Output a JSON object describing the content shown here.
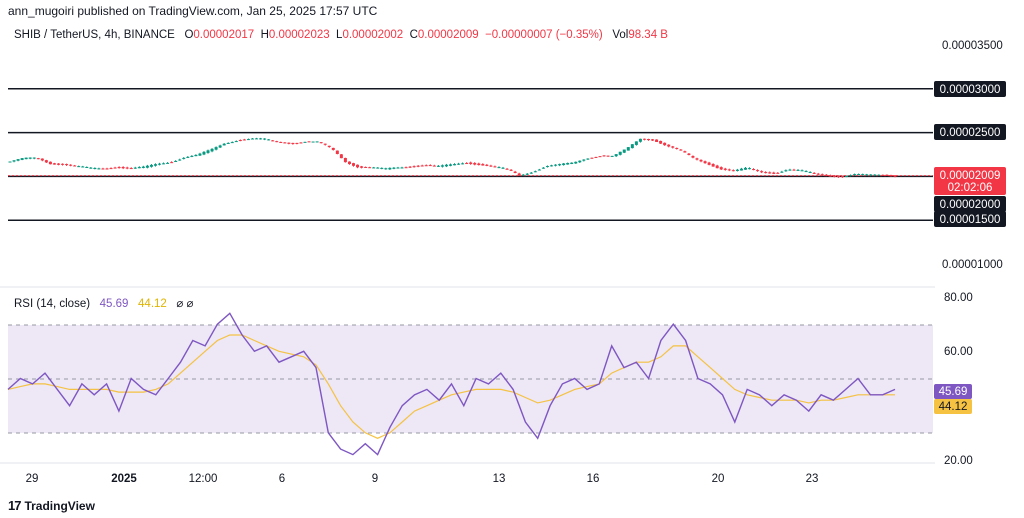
{
  "header": {
    "attribution": "ann_mugoiri published on TradingView.com, Jan 25, 2025 17:57 UTC"
  },
  "symbol": {
    "name": "SHIB / TetherUS, 4h, BINANCE",
    "o_label": "O",
    "o": "0.00002017",
    "h_label": "H",
    "h": "0.00002023",
    "l_label": "L",
    "l": "0.00002002",
    "c_label": "C",
    "c": "0.00002009",
    "change": "−0.00000007 (−0.35%)",
    "vol_label": "Vol",
    "vol": "98.34 B"
  },
  "rsi_legend": {
    "label": "RSI (14, close)",
    "rsi": "45.69",
    "ma": "44.12",
    "icons": "⌀ ⌀"
  },
  "footer": {
    "brand": "TradingView",
    "logo": "17"
  },
  "colors": {
    "up": "#089981",
    "down": "#f23645",
    "rsi": "#7e57c2",
    "ma": "#f5c242",
    "band": "#ede7f6",
    "hline": "#131722"
  },
  "chart_data": [
    {
      "type": "candlestick",
      "title": "SHIB / TetherUS, 4h, BINANCE",
      "y_ticks": [
        "0.00003500",
        "0.00003000",
        "0.00002500",
        "0.00002000",
        "0.00001500",
        "0.00001000"
      ],
      "ylim": [
        8.4e-06,
        3.84e-05
      ],
      "horizontal_lines": [
        3e-05,
        2.5e-05,
        2e-05,
        1.5e-05
      ],
      "horizontal_line_labels": [
        "0.00003000",
        "0.00002500",
        "0.00002000",
        "0.00001500"
      ],
      "last_price": 2.009e-05,
      "last_price_label": "0.00002009",
      "countdown": "02:02:06",
      "close_path_e8": [
        2170,
        2200,
        2210,
        2150,
        2140,
        2110,
        2090,
        2090,
        2110,
        2090,
        2100,
        2140,
        2170,
        2220,
        2240,
        2300,
        2380,
        2420,
        2430,
        2420,
        2390,
        2380,
        2400,
        2390,
        2310,
        2170,
        2110,
        2100,
        2080,
        2100,
        2120,
        2130,
        2110,
        2130,
        2160,
        2140,
        2110,
        2080,
        2010,
        2060,
        2120,
        2130,
        2150,
        2210,
        2240,
        2230,
        2310,
        2430,
        2420,
        2350,
        2290,
        2200,
        2150,
        2090,
        2060,
        2090,
        2050,
        2040,
        2080,
        2060,
        2030,
        2010,
        2000,
        2020,
        2010,
        2020,
        2009
      ]
    },
    {
      "type": "line",
      "title": "RSI (14, close)",
      "y_ticks": [
        "80.00",
        "60.00",
        "20.00"
      ],
      "ylim": [
        18,
        80
      ],
      "band": [
        30,
        70
      ],
      "midline": 50,
      "x_ticks": [
        "29",
        "2025",
        "12:00",
        "6",
        "9",
        "13",
        "16",
        "20",
        "23"
      ],
      "series": [
        {
          "name": "RSI",
          "last": 45.69,
          "values": [
            46,
            50,
            48,
            52,
            46,
            40,
            48,
            44,
            48,
            38,
            50,
            46,
            44,
            50,
            56,
            64,
            62,
            70,
            74,
            66,
            60,
            62,
            56,
            58,
            60,
            54,
            30,
            24,
            22,
            26,
            22,
            32,
            40,
            44,
            46,
            42,
            48,
            40,
            50,
            48,
            52,
            46,
            34,
            28,
            40,
            48,
            50,
            46,
            48,
            62,
            54,
            56,
            50,
            64,
            70,
            64,
            50,
            48,
            44,
            34,
            46,
            44,
            40,
            44,
            42,
            38,
            44,
            42,
            46,
            50,
            44,
            44,
            46
          ]
        },
        {
          "name": "MA",
          "last": 44.12,
          "values": [
            46,
            47,
            48,
            48,
            47,
            46,
            46,
            46,
            46,
            45,
            45,
            45,
            46,
            48,
            52,
            56,
            60,
            64,
            66,
            66,
            64,
            62,
            60,
            59,
            58,
            55,
            48,
            40,
            34,
            30,
            28,
            30,
            34,
            38,
            40,
            42,
            44,
            45,
            46,
            46,
            46,
            45,
            43,
            41,
            42,
            44,
            46,
            47,
            48,
            52,
            54,
            56,
            56,
            58,
            62,
            62,
            58,
            54,
            50,
            46,
            44,
            43,
            42,
            42,
            42,
            41,
            42,
            42,
            43,
            44,
            44,
            44,
            44
          ]
        }
      ],
      "last_labels": [
        "45.69",
        "44.12"
      ]
    }
  ]
}
